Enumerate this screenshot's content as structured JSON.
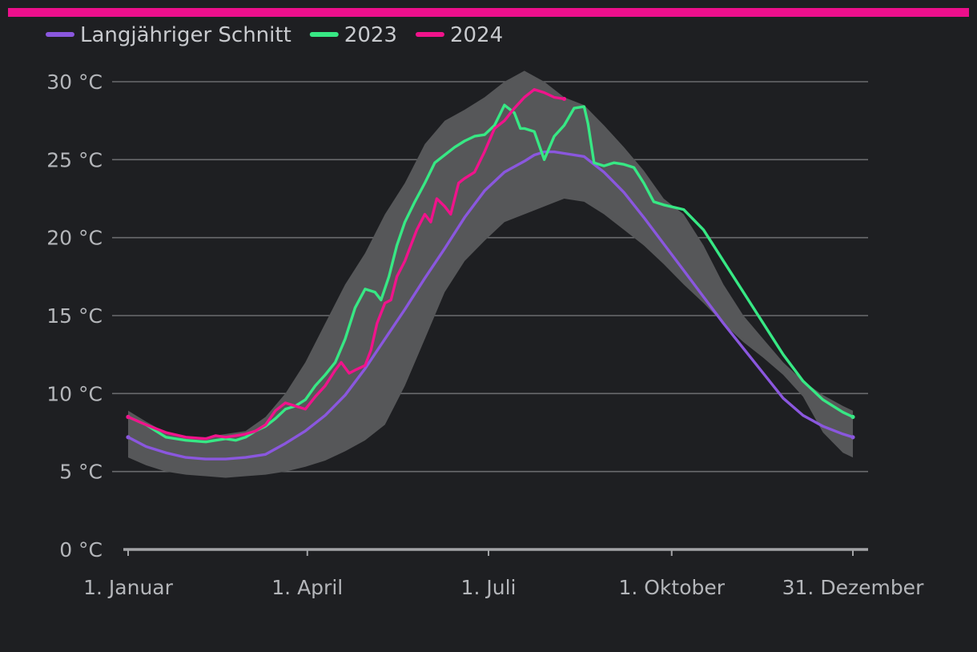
{
  "colors": {
    "background": "#1e1f22",
    "top_bar": "#ec0f8c",
    "band": "#565759",
    "grid": "#6a6b6e",
    "axis": "#a3a4a7",
    "text": "#b4b6ba"
  },
  "chart_data": {
    "type": "line",
    "title": "",
    "xlabel": "",
    "ylabel": "",
    "ylim": [
      0,
      30
    ],
    "y_ticks": [
      {
        "value": 0,
        "label": "0 °C"
      },
      {
        "value": 5,
        "label": "5 °C"
      },
      {
        "value": 10,
        "label": "10 °C"
      },
      {
        "value": 15,
        "label": "15 °C"
      },
      {
        "value": 20,
        "label": "20 °C"
      },
      {
        "value": 25,
        "label": "25 °C"
      },
      {
        "value": 30,
        "label": "30 °C"
      }
    ],
    "xlim": [
      1,
      365
    ],
    "x_unit": "day of year",
    "x_ticks": [
      {
        "value": 1,
        "label": "1. Januar"
      },
      {
        "value": 91,
        "label": "1. April"
      },
      {
        "value": 182,
        "label": "1. Juli"
      },
      {
        "value": 274,
        "label": "1. Oktober"
      },
      {
        "value": 365,
        "label": "31. Dezember"
      }
    ],
    "grid": true,
    "legend_position": "top-left",
    "band": {
      "color": "#565759",
      "x": [
        1,
        10,
        20,
        30,
        40,
        50,
        60,
        70,
        80,
        90,
        100,
        110,
        120,
        130,
        140,
        150,
        160,
        170,
        180,
        190,
        200,
        210,
        220,
        230,
        240,
        250,
        260,
        270,
        280,
        290,
        300,
        310,
        320,
        330,
        340,
        350,
        360,
        365
      ],
      "upper": [
        8.9,
        8.2,
        7.5,
        7.2,
        7.2,
        7.4,
        7.6,
        8.5,
        10.0,
        12.0,
        14.5,
        17.0,
        19.0,
        21.5,
        23.5,
        26.0,
        27.5,
        28.2,
        29.0,
        30.0,
        30.7,
        30.0,
        29.0,
        28.5,
        27.2,
        25.8,
        24.3,
        22.5,
        21.5,
        19.5,
        17.0,
        15.0,
        13.5,
        12.0,
        10.8,
        9.9,
        9.2,
        8.9
      ],
      "lower": [
        5.9,
        5.4,
        5.0,
        4.8,
        4.7,
        4.6,
        4.7,
        4.8,
        5.0,
        5.3,
        5.7,
        6.3,
        7.0,
        8.0,
        10.5,
        13.5,
        16.5,
        18.5,
        19.8,
        21.0,
        21.5,
        22.0,
        22.5,
        22.3,
        21.5,
        20.5,
        19.5,
        18.3,
        17.0,
        15.8,
        14.5,
        13.3,
        12.3,
        11.2,
        9.8,
        7.5,
        6.2,
        5.9
      ]
    },
    "series": [
      {
        "name": "Langjähriger Schnitt",
        "color": "#8a57de",
        "x": [
          1,
          10,
          20,
          30,
          40,
          50,
          60,
          70,
          80,
          90,
          100,
          110,
          120,
          130,
          140,
          150,
          160,
          170,
          180,
          190,
          200,
          205,
          210,
          215,
          220,
          230,
          240,
          250,
          260,
          270,
          280,
          290,
          300,
          310,
          320,
          330,
          340,
          350,
          360,
          365
        ],
        "values": [
          7.2,
          6.6,
          6.2,
          5.9,
          5.8,
          5.8,
          5.9,
          6.1,
          6.8,
          7.6,
          8.6,
          9.9,
          11.6,
          13.5,
          15.4,
          17.4,
          19.3,
          21.3,
          23.0,
          24.2,
          24.9,
          25.3,
          25.5,
          25.5,
          25.4,
          25.2,
          24.2,
          22.9,
          21.3,
          19.6,
          17.9,
          16.2,
          14.5,
          12.9,
          11.3,
          9.7,
          8.6,
          7.9,
          7.4,
          7.2
        ]
      },
      {
        "name": "2023",
        "color": "#37e884",
        "x": [
          1,
          10,
          15,
          20,
          30,
          40,
          45,
          50,
          55,
          60,
          65,
          70,
          75,
          80,
          85,
          90,
          95,
          100,
          105,
          110,
          115,
          120,
          125,
          128,
          132,
          136,
          140,
          145,
          150,
          155,
          160,
          165,
          170,
          175,
          180,
          185,
          190,
          195,
          198,
          200,
          205,
          210,
          215,
          220,
          225,
          230,
          232,
          235,
          240,
          245,
          250,
          255,
          260,
          265,
          270,
          280,
          290,
          300,
          310,
          320,
          330,
          340,
          350,
          360,
          365
        ],
        "values": [
          8.5,
          8.0,
          7.6,
          7.2,
          7.0,
          6.9,
          7.0,
          7.1,
          7.0,
          7.2,
          7.6,
          7.9,
          8.4,
          9.0,
          9.2,
          9.6,
          10.5,
          11.2,
          12.0,
          13.5,
          15.5,
          16.7,
          16.5,
          16.0,
          17.5,
          19.5,
          21.0,
          22.3,
          23.5,
          24.8,
          25.3,
          25.8,
          26.2,
          26.5,
          26.6,
          27.2,
          28.5,
          28.0,
          27.0,
          27.0,
          26.8,
          25.0,
          26.5,
          27.2,
          28.3,
          28.4,
          27.3,
          24.8,
          24.6,
          24.8,
          24.7,
          24.5,
          23.5,
          22.3,
          22.1,
          21.8,
          20.5,
          18.5,
          16.5,
          14.5,
          12.5,
          10.8,
          9.6,
          8.8,
          8.5
        ]
      },
      {
        "name": "2024",
        "color": "#f0138b",
        "x": [
          1,
          10,
          20,
          30,
          40,
          45,
          50,
          55,
          60,
          65,
          70,
          75,
          80,
          85,
          90,
          95,
          100,
          105,
          108,
          112,
          115,
          120,
          123,
          126,
          130,
          133,
          136,
          140,
          143,
          146,
          150,
          153,
          156,
          160,
          163,
          167,
          170,
          175,
          180,
          185,
          190,
          195,
          200,
          205,
          210,
          215,
          220
        ],
        "values": [
          8.5,
          8.0,
          7.5,
          7.2,
          7.1,
          7.3,
          7.2,
          7.3,
          7.4,
          7.6,
          8.0,
          8.9,
          9.4,
          9.2,
          9.0,
          9.8,
          10.5,
          11.5,
          12.0,
          11.3,
          11.5,
          11.8,
          12.8,
          14.5,
          15.8,
          16.0,
          17.5,
          18.5,
          19.5,
          20.5,
          21.5,
          21.0,
          22.5,
          22.0,
          21.5,
          23.5,
          23.8,
          24.2,
          25.5,
          27.0,
          27.5,
          28.3,
          29.0,
          29.5,
          29.3,
          29.0,
          28.9
        ]
      }
    ]
  }
}
